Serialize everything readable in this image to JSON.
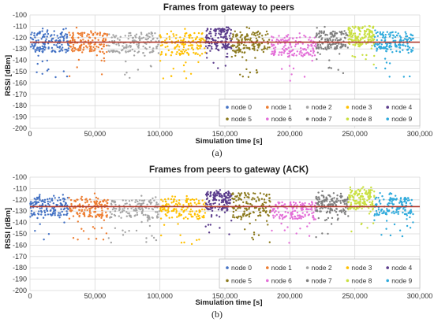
{
  "chart_data": [
    {
      "type": "scatter",
      "title": "Frames from gateway to peers",
      "xlabel": "Simulation time [s]",
      "ylabel": "RSSI [dBm]",
      "xlim": [
        0,
        300000
      ],
      "ylim": [
        -200,
        -100
      ],
      "xticks": [
        0,
        50000,
        100000,
        150000,
        200000,
        250000,
        300000
      ],
      "xtick_labels": [
        "0",
        "50,000",
        "100,000",
        "150,000",
        "200,000",
        "250,000",
        "300,000"
      ],
      "yticks": [
        -100,
        -110,
        -120,
        -130,
        -140,
        -150,
        -160,
        -170,
        -180,
        -190,
        -200
      ],
      "ytick_labels": [
        "-100",
        "-110",
        "-120",
        "-130",
        "-140",
        "-150",
        "-160",
        "-170",
        "-180",
        "-190",
        "-200"
      ],
      "grid": true,
      "legend_position": "bottom-right",
      "reference_line": {
        "y": -124,
        "color": "#b03a2e"
      },
      "caption": "(a)",
      "series": [
        {
          "name": "node 0",
          "color": "#4472c4",
          "x_range": [
            0,
            30000
          ],
          "y_center": -124,
          "y_spread": 9
        },
        {
          "name": "node 1",
          "color": "#ed7d31",
          "x_range": [
            30000,
            60000
          ],
          "y_center": -124,
          "y_spread": 9
        },
        {
          "name": "node 2",
          "color": "#a5a5a5",
          "x_range": [
            60000,
            100000
          ],
          "y_center": -125,
          "y_spread": 9
        },
        {
          "name": "node 3",
          "color": "#ffc000",
          "x_range": [
            100000,
            135000
          ],
          "y_center": -126,
          "y_spread": 10
        },
        {
          "name": "node 4",
          "color": "#5b3c8c",
          "x_range": [
            135000,
            155000
          ],
          "y_center": -121,
          "y_spread": 9
        },
        {
          "name": "node 5",
          "color": "#8c7a1e",
          "x_range": [
            155000,
            185000
          ],
          "y_center": -124,
          "y_spread": 10
        },
        {
          "name": "node 6",
          "color": "#e36fd8",
          "x_range": [
            185000,
            220000
          ],
          "y_center": -128,
          "y_spread": 9
        },
        {
          "name": "node 7",
          "color": "#7f7f7f",
          "x_range": [
            220000,
            245000
          ],
          "y_center": -122,
          "y_spread": 8
        },
        {
          "name": "node 8",
          "color": "#c9e040",
          "x_range": [
            245000,
            265000
          ],
          "y_center": -119,
          "y_spread": 9
        },
        {
          "name": "node 9",
          "color": "#2eaadc",
          "x_range": [
            265000,
            295000
          ],
          "y_center": -124,
          "y_spread": 9
        }
      ]
    },
    {
      "type": "scatter",
      "title": "Frames from peers to gateway (ACK)",
      "xlabel": "Simulation time [s]",
      "ylabel": "RSSI [dBm]",
      "xlim": [
        0,
        300000
      ],
      "ylim": [
        -200,
        -100
      ],
      "xticks": [
        0,
        50000,
        100000,
        150000,
        200000,
        250000,
        300000
      ],
      "xtick_labels": [
        "0",
        "50,000",
        "100,000",
        "150,000",
        "200,000",
        "250,000",
        "300,000"
      ],
      "yticks": [
        -100,
        -110,
        -120,
        -130,
        -140,
        -150,
        -160,
        -170,
        -180,
        -190,
        -200
      ],
      "ytick_labels": [
        "-100",
        "-110",
        "-120",
        "-130",
        "-140",
        "-150",
        "-160",
        "-170",
        "-180",
        "-190",
        "-200"
      ],
      "grid": true,
      "legend_position": "bottom-right",
      "reference_line": {
        "y": -126,
        "color": "#b03a2e"
      },
      "caption": "(b)",
      "series": [
        {
          "name": "node 0",
          "color": "#4472c4",
          "x_range": [
            0,
            30000
          ],
          "y_center": -126,
          "y_spread": 8
        },
        {
          "name": "node 1",
          "color": "#ed7d31",
          "x_range": [
            30000,
            60000
          ],
          "y_center": -127,
          "y_spread": 9
        },
        {
          "name": "node 2",
          "color": "#a5a5a5",
          "x_range": [
            60000,
            100000
          ],
          "y_center": -128,
          "y_spread": 8
        },
        {
          "name": "node 3",
          "color": "#ffc000",
          "x_range": [
            100000,
            135000
          ],
          "y_center": -128,
          "y_spread": 9
        },
        {
          "name": "node 4",
          "color": "#5b3c8c",
          "x_range": [
            135000,
            155000
          ],
          "y_center": -121,
          "y_spread": 8
        },
        {
          "name": "node 5",
          "color": "#8c7a1e",
          "x_range": [
            155000,
            185000
          ],
          "y_center": -125,
          "y_spread": 11
        },
        {
          "name": "node 6",
          "color": "#e36fd8",
          "x_range": [
            185000,
            220000
          ],
          "y_center": -130,
          "y_spread": 8
        },
        {
          "name": "node 7",
          "color": "#7f7f7f",
          "x_range": [
            220000,
            245000
          ],
          "y_center": -124,
          "y_spread": 8
        },
        {
          "name": "node 8",
          "color": "#c9e040",
          "x_range": [
            245000,
            265000
          ],
          "y_center": -120,
          "y_spread": 9
        },
        {
          "name": "node 9",
          "color": "#2eaadc",
          "x_range": [
            265000,
            295000
          ],
          "y_center": -126,
          "y_spread": 8
        }
      ]
    }
  ]
}
